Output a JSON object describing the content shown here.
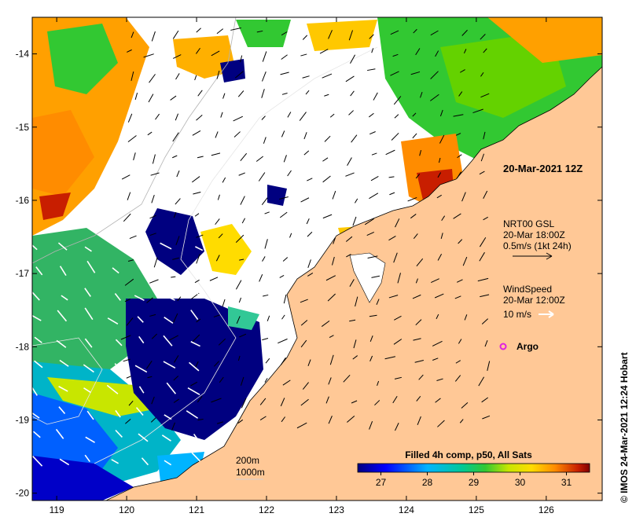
{
  "map": {
    "x_ticks": [
      "119",
      "120",
      "121",
      "122",
      "123",
      "124",
      "125",
      "126"
    ],
    "y_ticks": [
      "-14",
      "-15",
      "-16",
      "-17",
      "-18",
      "-19",
      "-20"
    ],
    "lon_range": [
      118.65,
      126.8
    ],
    "lat_range": [
      -13.5,
      -20.1
    ]
  },
  "annotations": {
    "date_label": "20-Mar-2021 12Z",
    "current_title": "NRT00 GSL",
    "current_time": "20-Mar 18:00Z",
    "current_scale": "0.5m/s (1kt 24h)",
    "wind_title": "WindSpeed",
    "wind_time": "20-Mar 12:00Z",
    "wind_scale": "10 m/s",
    "argo_label": "Argo",
    "iso_200": "200m",
    "iso_1000": "1000m",
    "credit": "© IMOS 24-Mar-2021 12:24 Hobart"
  },
  "colorbar": {
    "title": "Filled 4h comp, p50, All Sats",
    "ticks": [
      "27",
      "28",
      "29",
      "30",
      "31"
    ],
    "range": [
      26.5,
      31.5
    ]
  },
  "colors": {
    "land": "#ffc896",
    "argo": "#e020e0",
    "low": "#000080",
    "high": "#800000"
  }
}
